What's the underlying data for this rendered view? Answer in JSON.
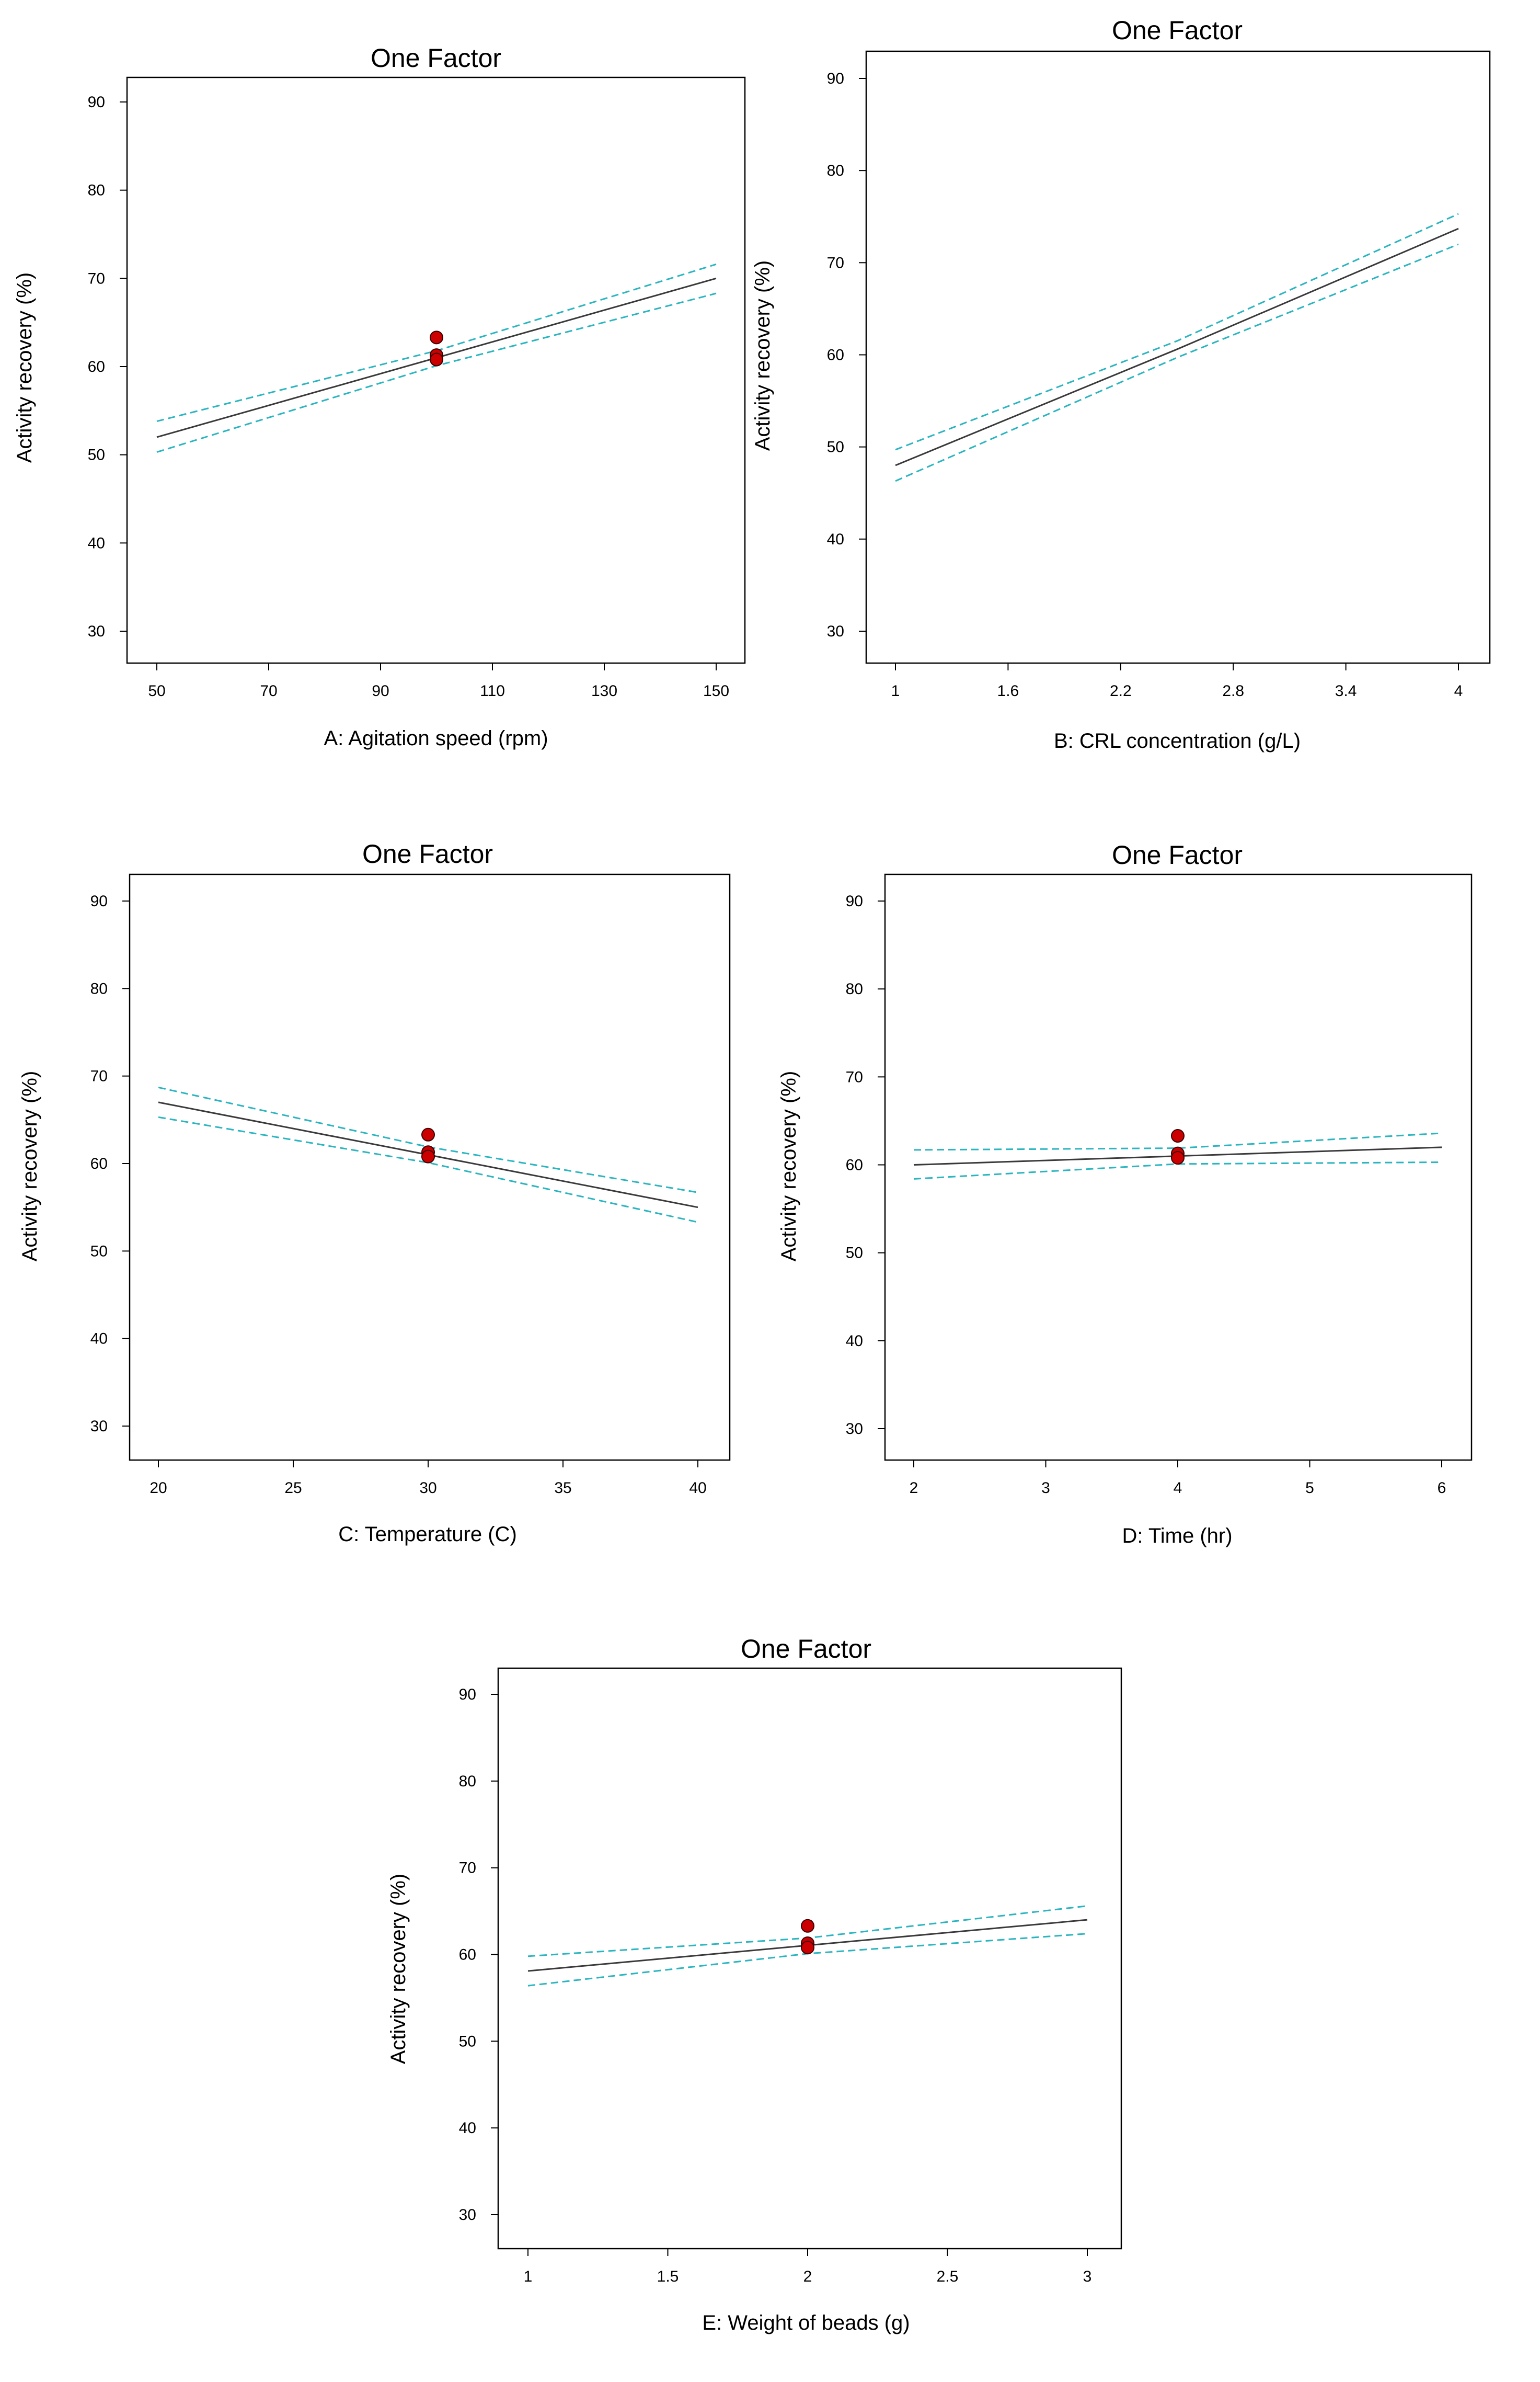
{
  "colors": {
    "fit_line": "#3a3a3a",
    "ci_band": "#2ab5c0",
    "design_point": "#cc0000"
  },
  "chart_data": [
    {
      "type": "line",
      "title": "One Factor",
      "xlabel": "A: Agitation speed (rpm)",
      "ylabel": "Activity recovery (%)",
      "xlim": [
        50,
        150
      ],
      "ylim": [
        30,
        90
      ],
      "xticks": [
        "50",
        "70",
        "90",
        "110",
        "130",
        "150"
      ],
      "yticks": [
        "30",
        "40",
        "50",
        "60",
        "70",
        "80",
        "90"
      ],
      "series": [
        {
          "name": "prediction",
          "x": [
            50,
            150
          ],
          "y": [
            52.0,
            70.0
          ]
        },
        {
          "name": "upper CI",
          "x": [
            50,
            100,
            150
          ],
          "y": [
            53.8,
            61.8,
            71.6
          ]
        },
        {
          "name": "lower CI",
          "x": [
            50,
            100,
            150
          ],
          "y": [
            50.3,
            60.1,
            68.3
          ]
        }
      ],
      "points": [
        {
          "x": 100,
          "y": 63.3
        },
        {
          "x": 100,
          "y": 61.3
        },
        {
          "x": 100,
          "y": 60.8
        }
      ]
    },
    {
      "type": "line",
      "title": "One Factor",
      "xlabel": "B: CRL concentration (g/L)",
      "ylabel": "Activity recovery (%)",
      "xlim": [
        1,
        4
      ],
      "ylim": [
        30,
        90
      ],
      "xticks": [
        "1",
        "1.6",
        "2.2",
        "2.8",
        "3.4",
        "4"
      ],
      "yticks": [
        "30",
        "40",
        "50",
        "60",
        "70",
        "80",
        "90"
      ],
      "series": [
        {
          "name": "prediction",
          "x": [
            1,
            2.5,
            4
          ],
          "y": [
            48.0,
            60.6,
            73.7
          ]
        },
        {
          "name": "upper CI",
          "x": [
            1,
            2.5,
            4
          ],
          "y": [
            49.7,
            61.5,
            75.3
          ]
        },
        {
          "name": "lower CI",
          "x": [
            1,
            2.5,
            4
          ],
          "y": [
            46.3,
            59.7,
            72.0
          ]
        }
      ],
      "points": []
    },
    {
      "type": "line",
      "title": "One Factor",
      "xlabel": "C: Temperature (C)",
      "ylabel": "Activity recovery (%)",
      "xlim": [
        20,
        40
      ],
      "ylim": [
        30,
        90
      ],
      "xticks": [
        "20",
        "25",
        "30",
        "35",
        "40"
      ],
      "yticks": [
        "30",
        "40",
        "50",
        "60",
        "70",
        "80",
        "90"
      ],
      "series": [
        {
          "name": "prediction",
          "x": [
            20,
            40
          ],
          "y": [
            67.0,
            55.0
          ]
        },
        {
          "name": "upper CI",
          "x": [
            20,
            30,
            40
          ],
          "y": [
            68.7,
            61.9,
            56.7
          ]
        },
        {
          "name": "lower CI",
          "x": [
            20,
            30,
            40
          ],
          "y": [
            65.3,
            60.1,
            53.3
          ]
        }
      ],
      "points": [
        {
          "x": 30,
          "y": 63.3
        },
        {
          "x": 30,
          "y": 61.3
        },
        {
          "x": 30,
          "y": 60.8
        }
      ]
    },
    {
      "type": "line",
      "title": "One Factor",
      "xlabel": "D: Time (hr)",
      "ylabel": "Activity recovery (%)",
      "xlim": [
        2,
        6
      ],
      "ylim": [
        30,
        90
      ],
      "xticks": [
        "2",
        "3",
        "4",
        "5",
        "6"
      ],
      "yticks": [
        "30",
        "40",
        "50",
        "60",
        "70",
        "80",
        "90"
      ],
      "series": [
        {
          "name": "prediction",
          "x": [
            2,
            6
          ],
          "y": [
            60.0,
            62.0
          ]
        },
        {
          "name": "upper CI",
          "x": [
            2,
            4,
            6
          ],
          "y": [
            61.7,
            61.9,
            63.6
          ]
        },
        {
          "name": "lower CI",
          "x": [
            2,
            4,
            6
          ],
          "y": [
            58.4,
            60.1,
            60.3
          ]
        }
      ],
      "points": [
        {
          "x": 4,
          "y": 63.3
        },
        {
          "x": 4,
          "y": 61.3
        },
        {
          "x": 4,
          "y": 60.8
        }
      ]
    },
    {
      "type": "line",
      "title": "One Factor",
      "xlabel": "E: Weight of beads (g)",
      "ylabel": "Activity recovery (%)",
      "xlim": [
        1,
        3
      ],
      "ylim": [
        30,
        90
      ],
      "xticks": [
        "1",
        "1.5",
        "2",
        "2.5",
        "3"
      ],
      "yticks": [
        "30",
        "40",
        "50",
        "60",
        "70",
        "80",
        "90"
      ],
      "series": [
        {
          "name": "prediction",
          "x": [
            1,
            3
          ],
          "y": [
            58.1,
            64.0
          ]
        },
        {
          "name": "upper CI",
          "x": [
            1,
            2,
            3
          ],
          "y": [
            59.8,
            61.9,
            65.6
          ]
        },
        {
          "name": "lower CI",
          "x": [
            1,
            2,
            3
          ],
          "y": [
            56.4,
            60.1,
            62.4
          ]
        }
      ],
      "points": [
        {
          "x": 2,
          "y": 63.3
        },
        {
          "x": 2,
          "y": 61.3
        },
        {
          "x": 2,
          "y": 60.8
        }
      ]
    }
  ]
}
